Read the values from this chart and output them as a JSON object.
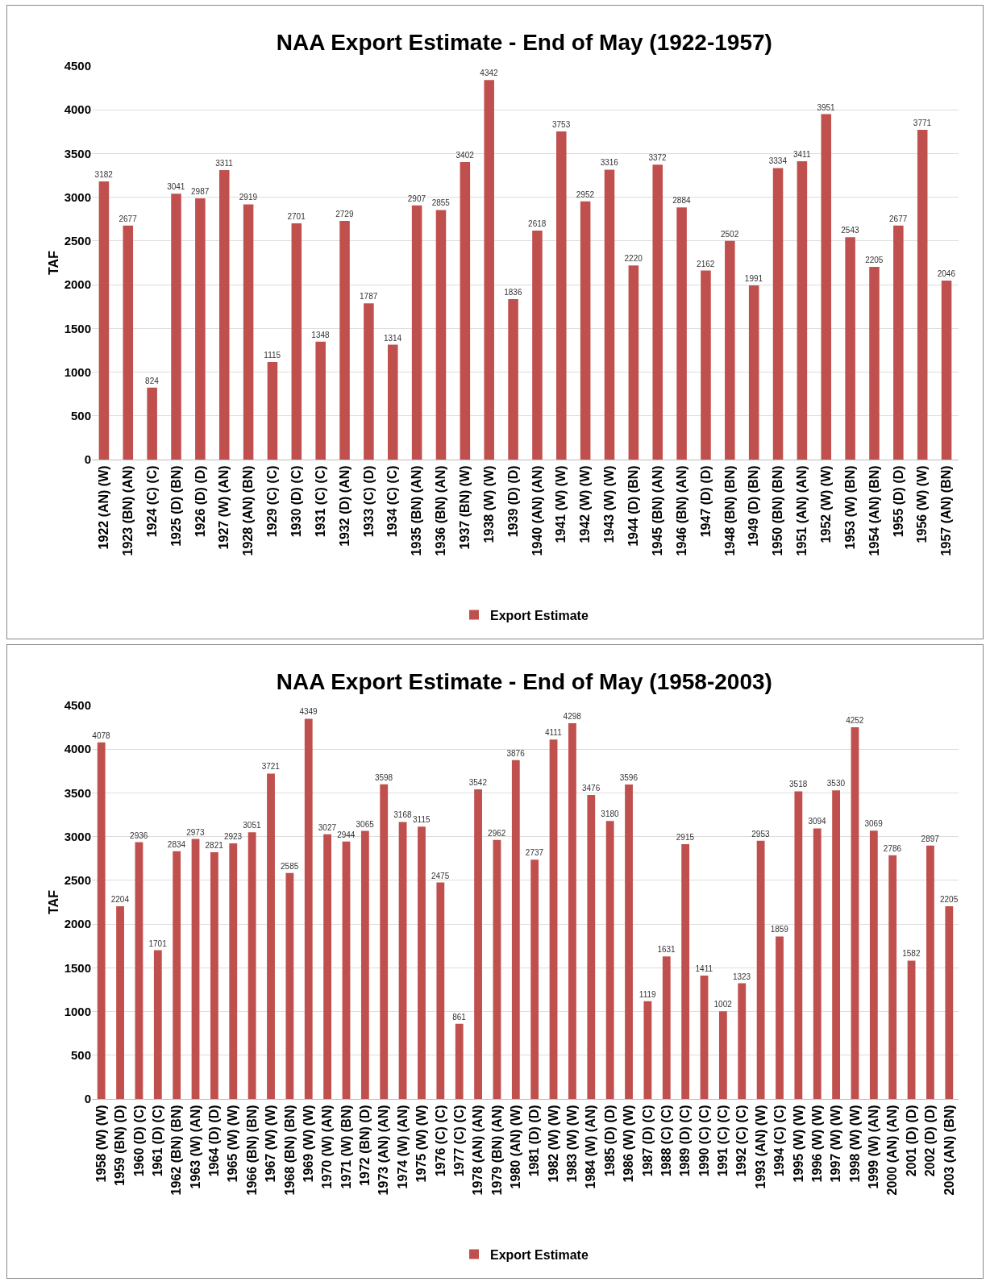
{
  "chart_data": [
    {
      "type": "bar",
      "title": "NAA Export Estimate - End of May (1922-1957)",
      "ylabel": "TAF",
      "categories": [
        "1922 (AN) (W)",
        "1923 (BN) (AN)",
        "1924 (C) (C)",
        "1925 (D) (BN)",
        "1926 (D) (D)",
        "1927 (W) (AN)",
        "1928 (AN) (BN)",
        "1929 (C) (C)",
        "1930 (D) (C)",
        "1931 (C) (C)",
        "1932 (D) (AN)",
        "1933 (C) (D)",
        "1934 (C) (C)",
        "1935 (BN) (AN)",
        "1936 (BN) (AN)",
        "1937 (BN) (W)",
        "1938 (W) (W)",
        "1939 (D) (D)",
        "1940 (AN) (AN)",
        "1941 (W) (W)",
        "1942 (W) (W)",
        "1943 (W) (W)",
        "1944 (D) (BN)",
        "1945 (BN) (AN)",
        "1946 (BN) (AN)",
        "1947 (D) (D)",
        "1948 (BN) (BN)",
        "1949 (D) (BN)",
        "1950 (BN) (BN)",
        "1951 (AN) (AN)",
        "1952 (W) (W)",
        "1953 (W) (BN)",
        "1954 (AN) (BN)",
        "1955 (D) (D)",
        "1956 (W) (W)",
        "1957 (AN) (BN)"
      ],
      "series": [
        {
          "name": "Export Estimate",
          "color": "#c0504d",
          "values": [
            3182,
            2677,
            824,
            3041,
            2987,
            3311,
            2919,
            1115,
            2701,
            1348,
            2729,
            1787,
            1314,
            2907,
            2855,
            3402,
            4342,
            1836,
            2618,
            3753,
            2952,
            3316,
            2220,
            3372,
            2884,
            2162,
            2502,
            1991,
            3334,
            3411,
            3951,
            2543,
            2205,
            2677,
            3771,
            2046
          ]
        }
      ],
      "ylim": [
        0,
        4500
      ],
      "yticks": [
        0,
        500,
        1000,
        1500,
        2000,
        2500,
        3000,
        3500,
        4000,
        4500
      ],
      "grid": "y",
      "legend": "bottom",
      "data_labels": true
    },
    {
      "type": "bar",
      "title": "NAA Export Estimate - End of May (1958-2003)",
      "ylabel": "TAF",
      "categories": [
        "1958 (W) (W)",
        "1959 (BN) (D)",
        "1960 (D) (C)",
        "1961 (D) (C)",
        "1962 (BN) (BN)",
        "1963 (W) (AN)",
        "1964 (D) (D)",
        "1965 (W) (W)",
        "1966 (BN) (BN)",
        "1967 (W) (W)",
        "1968 (BN) (BN)",
        "1969 (W) (W)",
        "1970 (W) (AN)",
        "1971 (W) (BN)",
        "1972 (BN) (D)",
        "1973 (AN) (AN)",
        "1974 (W) (AN)",
        "1975 (W) (W)",
        "1976 (C) (C)",
        "1977 (C) (C)",
        "1978 (AN) (AN)",
        "1979 (BN) (AN)",
        "1980 (AN) (W)",
        "1981 (D) (D)",
        "1982 (W) (W)",
        "1983 (W) (W)",
        "1984 (W) (AN)",
        "1985 (D) (D)",
        "1986 (W) (W)",
        "1987 (D) (C)",
        "1988 (C) (C)",
        "1989 (D) (C)",
        "1990 (C) (C)",
        "1991 (C) (C)",
        "1992 (C) (C)",
        "1993 (AN) (W)",
        "1994 (C) (C)",
        "1995 (W) (W)",
        "1996 (W) (W)",
        "1997 (W) (W)",
        "1998 (W) (W)",
        "1999 (W) (AN)",
        "2000 (AN) (AN)",
        "2001 (D) (D)",
        "2002 (D) (D)",
        "2003 (AN) (BN)"
      ],
      "series": [
        {
          "name": "Export Estimate",
          "color": "#c0504d",
          "values": [
            4078,
            2204,
            2936,
            1701,
            2834,
            2973,
            2821,
            2923,
            3051,
            3721,
            2585,
            4349,
            3027,
            2944,
            3065,
            3598,
            3168,
            3115,
            2475,
            861,
            3542,
            2962,
            3876,
            2737,
            4111,
            4298,
            3476,
            3180,
            3596,
            1119,
            1631,
            2915,
            1411,
            1002,
            1323,
            2953,
            1859,
            3518,
            3094,
            3530,
            4252,
            3069,
            2786,
            1582,
            2897,
            2205
          ]
        }
      ],
      "ylim": [
        0,
        4500
      ],
      "yticks": [
        0,
        500,
        1000,
        1500,
        2000,
        2500,
        3000,
        3500,
        4000,
        4500
      ],
      "grid": "y",
      "legend": "bottom",
      "data_labels": true
    }
  ]
}
